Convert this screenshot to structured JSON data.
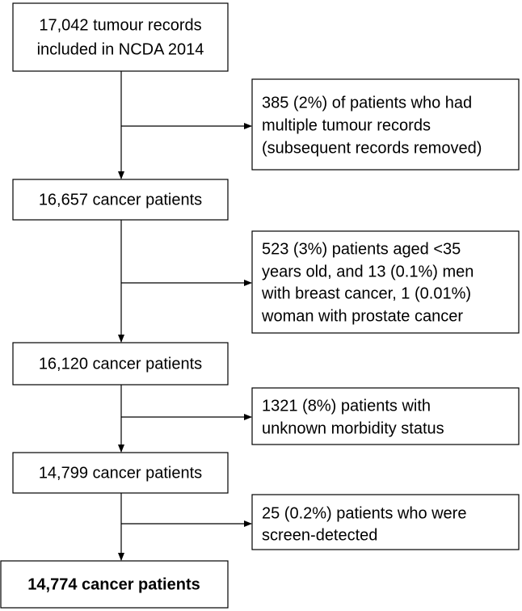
{
  "nodes": [
    {
      "lines": [
        "17,042 tumour records",
        "included in NCDA 2014"
      ]
    },
    {
      "lines": [
        "16,657 cancer patients"
      ]
    },
    {
      "lines": [
        "16,120 cancer patients"
      ]
    },
    {
      "lines": [
        "14,799 cancer patients"
      ]
    },
    {
      "lines": [
        "14,774 cancer patients"
      ]
    }
  ],
  "exclusions": [
    {
      "lines": [
        "385 (2%) of patients who had",
        "multiple tumour records",
        "(subsequent records removed)"
      ]
    },
    {
      "lines": [
        "523 (3%) patients aged <35",
        "years old, and 13 (0.1%) men",
        "with breast cancer, 1 (0.01%)",
        "woman with prostate cancer"
      ]
    },
    {
      "lines": [
        "1321 (8%) patients with",
        "unknown morbidity status"
      ]
    },
    {
      "lines": [
        "25 (0.2%) patients who were",
        "screen-detected"
      ]
    }
  ]
}
